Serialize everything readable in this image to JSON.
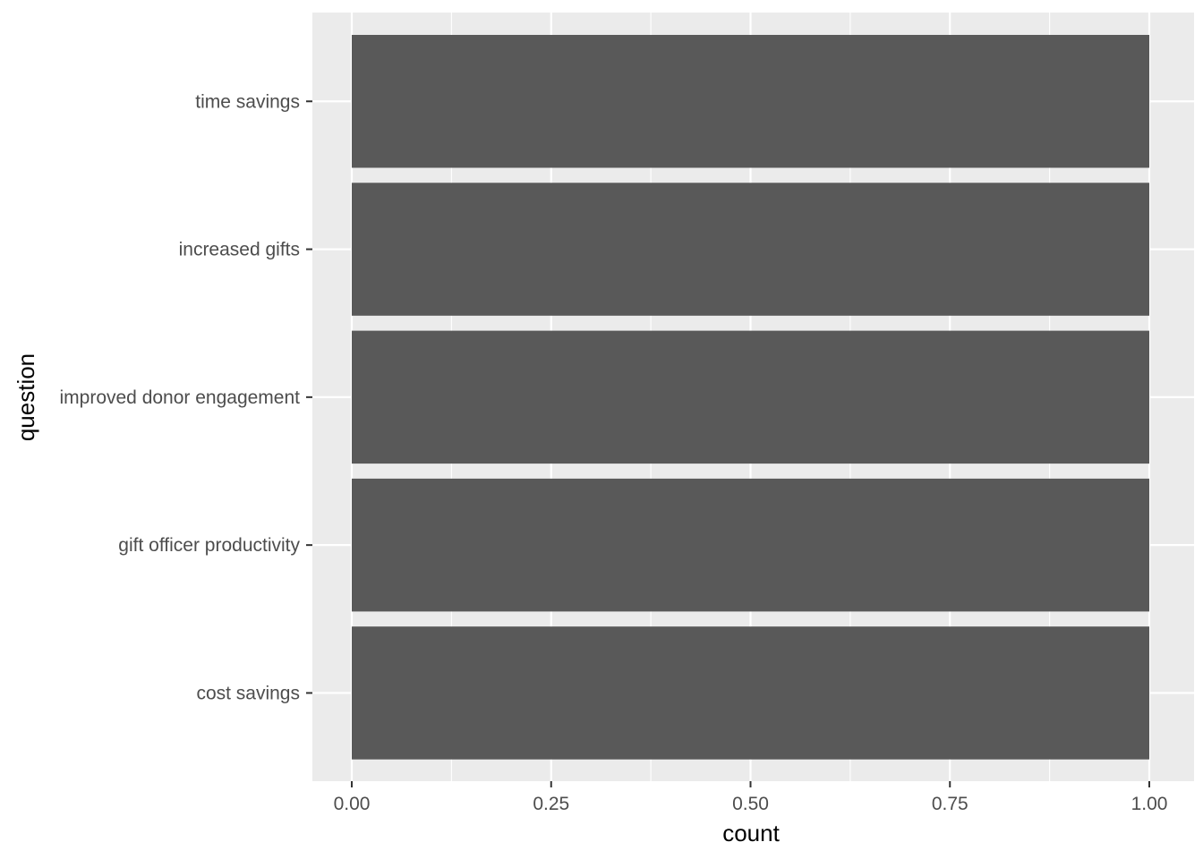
{
  "chart_data": {
    "type": "bar",
    "orientation": "horizontal",
    "categories": [
      "time savings",
      "increased gifts",
      "improved donor engagement",
      "gift officer productivity",
      "cost savings"
    ],
    "values": [
      1,
      1,
      1,
      1,
      1
    ],
    "xlabel": "count",
    "ylabel": "question",
    "xlim": [
      0,
      1
    ],
    "xticks": [
      "0.00",
      "0.25",
      "0.50",
      "0.75",
      "1.00"
    ],
    "grid": true,
    "legend": "none",
    "colors": {
      "bar": "#595959",
      "panel": "#ebebeb",
      "grid": "#ffffff",
      "tick_text": "#4d4d4d",
      "tick_mark": "#333333"
    }
  }
}
